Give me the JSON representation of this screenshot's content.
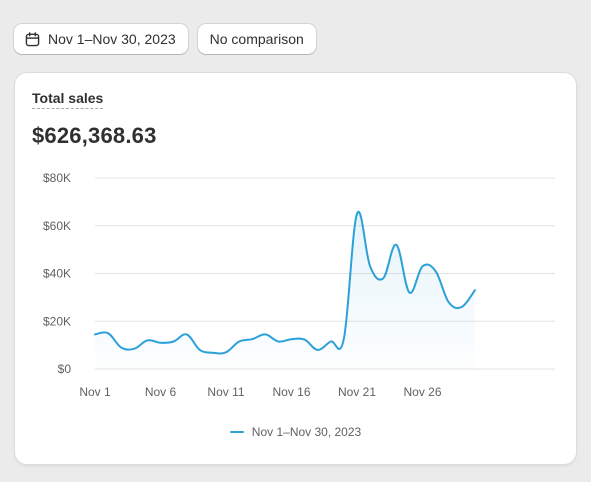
{
  "toolbar": {
    "date_range_label": "Nov 1–Nov 30, 2023",
    "comparison_label": "No comparison"
  },
  "card": {
    "title": "Total sales",
    "value": "$626,368.63"
  },
  "colors": {
    "series": "#2ca0d8",
    "grid": "#e3e3e3",
    "axis_text": "#616161"
  },
  "chart_data": {
    "type": "area",
    "title": "Total sales",
    "xlabel": "",
    "ylabel": "",
    "ylim": [
      0,
      80000
    ],
    "grid": true,
    "legend_position": "bottom-center",
    "y_ticks": [
      "$80K",
      "$60K",
      "$40K",
      "$20K",
      "$0"
    ],
    "y_tick_values": [
      80000,
      60000,
      40000,
      20000,
      0
    ],
    "x_ticks": [
      "Nov 1",
      "Nov 6",
      "Nov 11",
      "Nov 16",
      "Nov 21",
      "Nov 26"
    ],
    "x_tick_days": [
      1,
      6,
      11,
      16,
      21,
      26
    ],
    "x": [
      1,
      2,
      3,
      4,
      5,
      6,
      7,
      8,
      9,
      10,
      11,
      12,
      13,
      14,
      15,
      16,
      17,
      18,
      19,
      20,
      21,
      22,
      23,
      24,
      25,
      26,
      27,
      28,
      29,
      30
    ],
    "series": [
      {
        "name": "Nov 1–Nov 30, 2023",
        "values": [
          14500,
          15000,
          9000,
          8500,
          12000,
          11000,
          11500,
          14500,
          8000,
          6800,
          7000,
          11500,
          12500,
          14500,
          11500,
          12500,
          12300,
          8000,
          11500,
          12800,
          65000,
          43000,
          38000,
          52000,
          32000,
          43000,
          41000,
          28000,
          26000,
          33000
        ]
      }
    ]
  }
}
